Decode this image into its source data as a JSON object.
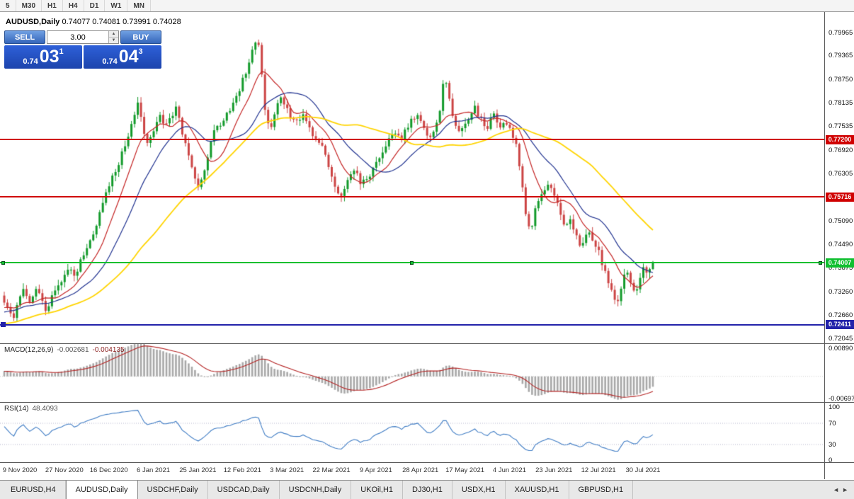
{
  "toolbar": {
    "timeframes": [
      "5",
      "M30",
      "H1",
      "H4",
      "D1",
      "W1",
      "MN"
    ]
  },
  "chart": {
    "title_symbol": "AUDUSD,Daily",
    "title_ohlc": "0.74077 0.74081 0.73991 0.74028"
  },
  "trade_panel": {
    "sell_label": "SELL",
    "buy_label": "BUY",
    "volume": "3.00",
    "sell_price": {
      "base": "0.74",
      "big": "03",
      "sup": "1"
    },
    "buy_price": {
      "base": "0.74",
      "big": "04",
      "sup": "3"
    }
  },
  "icons": {
    "tab_scroll_left": "◄",
    "tab_scroll_right": "►",
    "spin_up": "▲",
    "spin_down": "▼"
  },
  "price_axis": [
    "0.79965",
    "0.79365",
    "0.78750",
    "0.78135",
    "0.77535",
    "0.76920",
    "0.76305",
    "0.75705",
    "0.75090",
    "0.74490",
    "0.73875",
    "0.73260",
    "0.72660",
    "0.72045"
  ],
  "hlines": [
    {
      "price": 0.772,
      "label": "0.77200",
      "color": "#d00000",
      "width": 2,
      "selected": false,
      "left_marker": false
    },
    {
      "price": 0.75716,
      "label": "0.75716",
      "color": "#d00000",
      "width": 2,
      "selected": false,
      "left_marker": false
    },
    {
      "price": 0.74007,
      "label": "0.74007",
      "color": "#0fbf2f",
      "width": 2,
      "selected": true,
      "left_marker": false
    },
    {
      "price": 0.72411,
      "label": "0.72411",
      "color": "#2222aa",
      "width": 2,
      "selected": false,
      "left_marker": true
    }
  ],
  "macd_panel": {
    "name": "MACD(12,26,9)",
    "main_value": "-0.002681",
    "signal_value": "-0.004135",
    "axis": [
      "0.00890",
      "-0.00697"
    ]
  },
  "rsi_panel": {
    "name": "RSI(14)",
    "value": "48.4093",
    "axis": [
      "100",
      "70",
      "30",
      "0"
    ],
    "levels": [
      70,
      30
    ]
  },
  "date_axis": [
    "9 Nov 2020",
    "27 Nov 2020",
    "16 Dec 2020",
    "6 Jan 2021",
    "25 Jan 2021",
    "12 Feb 2021",
    "3 Mar 2021",
    "22 Mar 2021",
    "9 Apr 2021",
    "28 Apr 2021",
    "17 May 2021",
    "4 Jun 2021",
    "23 Jun 2021",
    "12 Jul 2021",
    "30 Jul 2021"
  ],
  "tabs": {
    "items": [
      "EURUSD,H4",
      "AUDUSD,Daily",
      "USDCHF,Daily",
      "USDCAD,Daily",
      "USDCNH,Daily",
      "UKOil,H1",
      "DJ30,H1",
      "USDX,H1",
      "XAUUSD,H1",
      "GBPUSD,H1"
    ],
    "active_index": 1
  },
  "chart_data": {
    "type": "candlestick",
    "symbol": "AUDUSD",
    "timeframe": "Daily",
    "title": "AUDUSD,Daily 0.74077 0.74081 0.73991 0.74028",
    "visible_range": {
      "price_top_label": 0.79965,
      "price_bottom_label": 0.72045
    },
    "candle_count": 205,
    "last_close": 0.74028,
    "close_keyframes": [
      [
        0,
        0.73
      ],
      [
        0.008,
        0.7278
      ],
      [
        0.015,
        0.7258
      ],
      [
        0.022,
        0.7306
      ],
      [
        0.03,
        0.733
      ],
      [
        0.04,
        0.7295
      ],
      [
        0.05,
        0.734
      ],
      [
        0.058,
        0.7305
      ],
      [
        0.065,
        0.7268
      ],
      [
        0.072,
        0.7312
      ],
      [
        0.08,
        0.7342
      ],
      [
        0.09,
        0.7362
      ],
      [
        0.1,
        0.7392
      ],
      [
        0.11,
        0.7366
      ],
      [
        0.12,
        0.7421
      ],
      [
        0.13,
        0.7446
      ],
      [
        0.14,
        0.7481
      ],
      [
        0.15,
        0.7551
      ],
      [
        0.16,
        0.7591
      ],
      [
        0.172,
        0.7641
      ],
      [
        0.185,
        0.7701
      ],
      [
        0.196,
        0.7761
      ],
      [
        0.205,
        0.7816
      ],
      [
        0.212,
        0.7771
      ],
      [
        0.22,
        0.7706
      ],
      [
        0.23,
        0.7746
      ],
      [
        0.24,
        0.7791
      ],
      [
        0.248,
        0.7751
      ],
      [
        0.257,
        0.7776
      ],
      [
        0.265,
        0.7806
      ],
      [
        0.273,
        0.7741
      ],
      [
        0.282,
        0.7691
      ],
      [
        0.292,
        0.7631
      ],
      [
        0.3,
        0.7601
      ],
      [
        0.312,
        0.7661
      ],
      [
        0.322,
        0.7736
      ],
      [
        0.335,
        0.7766
      ],
      [
        0.348,
        0.7796
      ],
      [
        0.36,
        0.7841
      ],
      [
        0.372,
        0.7891
      ],
      [
        0.383,
        0.7951
      ],
      [
        0.39,
        0.7993
      ],
      [
        0.396,
        0.7901
      ],
      [
        0.402,
        0.7791
      ],
      [
        0.41,
        0.7746
      ],
      [
        0.42,
        0.7801
      ],
      [
        0.428,
        0.7831
      ],
      [
        0.44,
        0.7786
      ],
      [
        0.452,
        0.7761
      ],
      [
        0.462,
        0.7786
      ],
      [
        0.472,
        0.7741
      ],
      [
        0.483,
        0.7706
      ],
      [
        0.492,
        0.7696
      ],
      [
        0.502,
        0.7641
      ],
      [
        0.512,
        0.7586
      ],
      [
        0.52,
        0.7566
      ],
      [
        0.53,
        0.7616
      ],
      [
        0.54,
        0.7646
      ],
      [
        0.55,
        0.7606
      ],
      [
        0.562,
        0.7626
      ],
      [
        0.575,
        0.7661
      ],
      [
        0.588,
        0.7701
      ],
      [
        0.6,
        0.7741
      ],
      [
        0.612,
        0.7721
      ],
      [
        0.625,
        0.7761
      ],
      [
        0.638,
        0.7791
      ],
      [
        0.648,
        0.7746
      ],
      [
        0.656,
        0.7721
      ],
      [
        0.665,
        0.7756
      ],
      [
        0.672,
        0.7791
      ],
      [
        0.678,
        0.7886
      ],
      [
        0.685,
        0.7841
      ],
      [
        0.692,
        0.7781
      ],
      [
        0.7,
        0.7731
      ],
      [
        0.708,
        0.7763
      ],
      [
        0.716,
        0.7776
      ],
      [
        0.725,
        0.7806
      ],
      [
        0.735,
        0.7771
      ],
      [
        0.745,
        0.7753
      ],
      [
        0.755,
        0.7786
      ],
      [
        0.765,
        0.7746
      ],
      [
        0.774,
        0.7763
      ],
      [
        0.782,
        0.7736
      ],
      [
        0.79,
        0.7701
      ],
      [
        0.797,
        0.7611
      ],
      [
        0.805,
        0.7521
      ],
      [
        0.812,
        0.7483
      ],
      [
        0.82,
        0.7546
      ],
      [
        0.83,
        0.7581
      ],
      [
        0.84,
        0.7601
      ],
      [
        0.849,
        0.7571
      ],
      [
        0.858,
        0.7521
      ],
      [
        0.865,
        0.7496
      ],
      [
        0.872,
        0.7523
      ],
      [
        0.88,
        0.7481
      ],
      [
        0.89,
        0.7441
      ],
      [
        0.9,
        0.7483
      ],
      [
        0.908,
        0.7453
      ],
      [
        0.915,
        0.7441
      ],
      [
        0.922,
        0.7396
      ],
      [
        0.93,
        0.7356
      ],
      [
        0.938,
        0.7319
      ],
      [
        0.945,
        0.7293
      ],
      [
        0.952,
        0.7349
      ],
      [
        0.958,
        0.7389
      ],
      [
        0.965,
        0.7353
      ],
      [
        0.972,
        0.7323
      ],
      [
        0.979,
        0.7353
      ],
      [
        0.986,
        0.7393
      ],
      [
        0.993,
        0.7373
      ],
      [
        1,
        0.7403
      ]
    ],
    "moving_averages": [
      {
        "period": 10,
        "color": "#c42525",
        "width": 1.2
      },
      {
        "period": 21,
        "color": "#1f318f",
        "width": 1.2
      },
      {
        "period": 48,
        "color": "#ffd400",
        "width": 1.8
      }
    ],
    "indicators": {
      "macd": {
        "fast": 12,
        "slow": 26,
        "signal": 9
      },
      "rsi": {
        "period": 14
      }
    },
    "colors": {
      "up": "#129a2a",
      "down": "#cc4444",
      "macd_histogram": "#a8a8a8",
      "macd_signal": "#b42222",
      "rsi_line": "#3f7cc4",
      "rsi_levels": "#b0b0cc"
    }
  }
}
